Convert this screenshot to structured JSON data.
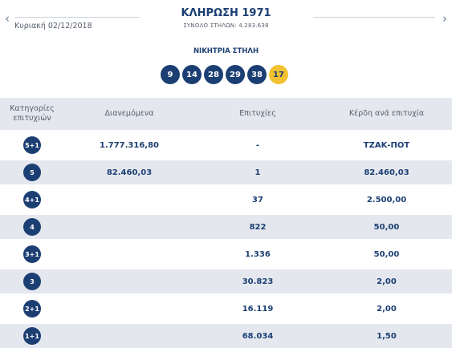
{
  "header": {
    "prev_icon": "chevron-left-icon",
    "next_icon": "chevron-right-icon",
    "date": "Κυριακή 02/12/2018",
    "title": "ΚΛΗΡΩΣΗ 1971",
    "subtitle": "ΣΥΝΟΛΟ ΣΤΗΛΩΝ: 4.283.638"
  },
  "winning": {
    "label": "ΝΙΚΗΤΡΙΑ ΣΤΗΛΗ",
    "numbers": [
      "9",
      "14",
      "28",
      "29",
      "38"
    ],
    "joker": "17"
  },
  "table": {
    "headers": [
      "Κατηγορίες επιτυχιών",
      "Διανεμόμενα",
      "Επιτυχίες",
      "Κέρδη ανά επιτυχία"
    ],
    "rows": [
      {
        "cat": "5+1",
        "dist": "1.777.316,80",
        "wins": "-",
        "prize": "ΤΖΑΚ-ΠΟΤ"
      },
      {
        "cat": "5",
        "dist": "82.460,03",
        "wins": "1",
        "prize": "82.460,03"
      },
      {
        "cat": "4+1",
        "dist": "",
        "wins": "37",
        "prize": "2.500,00"
      },
      {
        "cat": "4",
        "dist": "",
        "wins": "822",
        "prize": "50,00"
      },
      {
        "cat": "3+1",
        "dist": "",
        "wins": "1.336",
        "prize": "50,00"
      },
      {
        "cat": "3",
        "dist": "",
        "wins": "30.823",
        "prize": "2,00"
      },
      {
        "cat": "2+1",
        "dist": "",
        "wins": "16.119",
        "prize": "2,00"
      },
      {
        "cat": "1+1",
        "dist": "",
        "wins": "68.034",
        "prize": "1,50"
      }
    ]
  },
  "colors": {
    "primary": "#1c3f73",
    "joker": "#f2c230",
    "row_alt": "#e4e8ee"
  }
}
